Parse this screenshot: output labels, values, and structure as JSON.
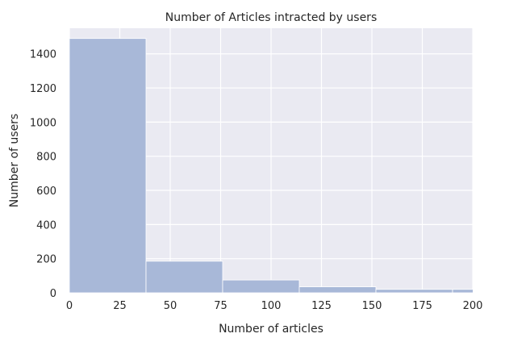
{
  "chart_data": {
    "type": "bar",
    "title": "Number of Articles intracted by users",
    "xlabel": "Number of articles",
    "ylabel": "Number of users",
    "xlim": [
      0,
      200
    ],
    "ylim": [
      0,
      1550
    ],
    "xticks": [
      0,
      25,
      50,
      75,
      100,
      125,
      150,
      175,
      200
    ],
    "yticks": [
      0,
      200,
      400,
      600,
      800,
      1000,
      1200,
      1400
    ],
    "grid": true,
    "bins": [
      {
        "start": 0,
        "end": 38,
        "value": 1490
      },
      {
        "start": 38,
        "end": 76,
        "value": 185
      },
      {
        "start": 76,
        "end": 114,
        "value": 75
      },
      {
        "start": 114,
        "end": 152,
        "value": 35
      },
      {
        "start": 152,
        "end": 190,
        "value": 20
      },
      {
        "start": 190,
        "end": 228,
        "value": 20
      }
    ],
    "colors": {
      "bar": "#a8b8d8",
      "plot_bg": "#eaeaf2",
      "grid": "#ffffff"
    }
  }
}
